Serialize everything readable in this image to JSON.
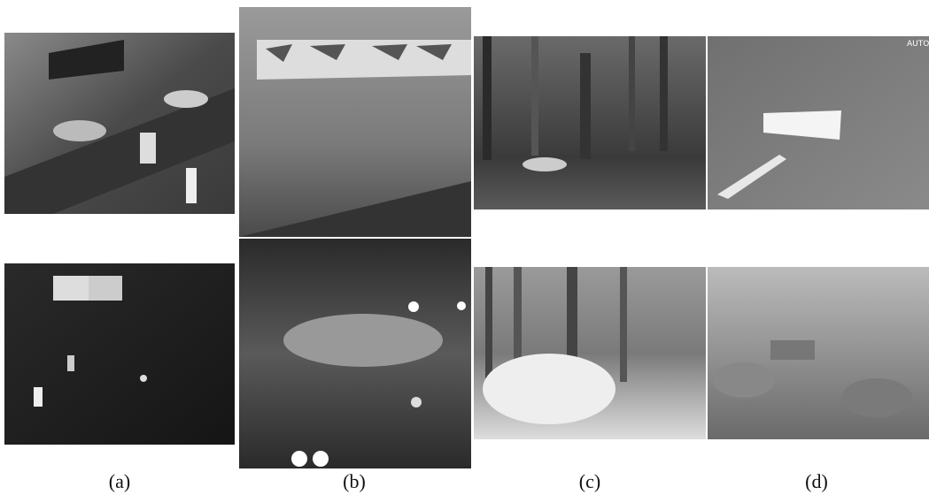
{
  "figure": {
    "panels": [
      {
        "label": "(a)"
      },
      {
        "label": "(b)"
      },
      {
        "label": "(c)",
        "overlay": null
      },
      {
        "label": "(d)",
        "overlay": "AUTO"
      }
    ]
  }
}
